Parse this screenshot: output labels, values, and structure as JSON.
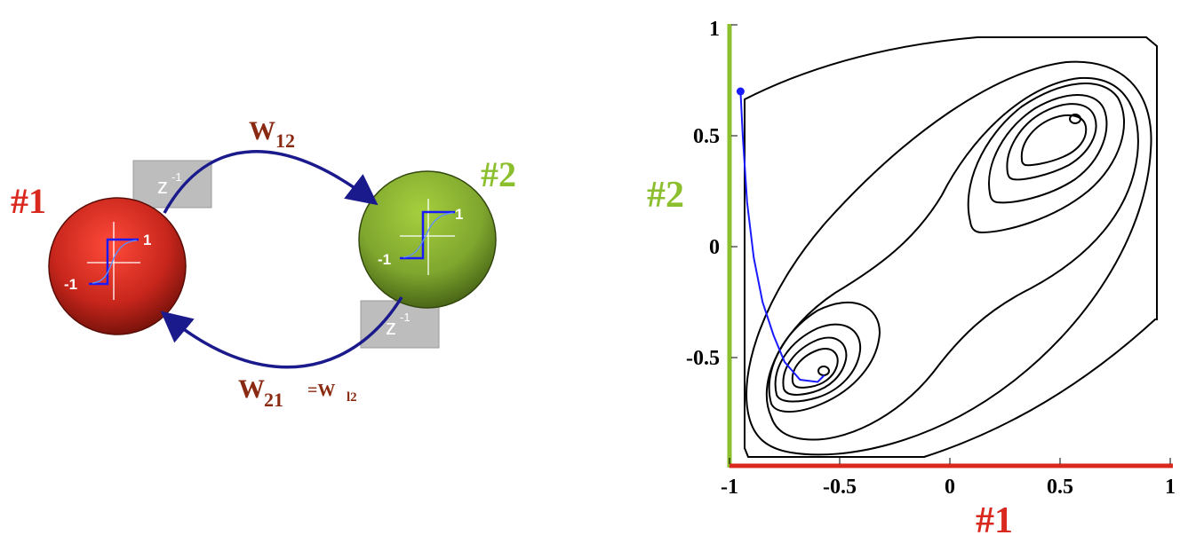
{
  "colors": {
    "neuron1": "#c8261c",
    "neuron2": "#7fa62e",
    "label1": "#d9281e",
    "label2": "#8cbf2e",
    "weight_text": "#8b2a12",
    "arrow": "#1a1a8c",
    "delay_box": "#bdbdbd",
    "trajectory": "#1a1aff",
    "contour": "#000000"
  },
  "diagram": {
    "neuron1_label": "#1",
    "neuron2_label": "#2",
    "delay_label": "z",
    "delay_exponent": "-1",
    "weight12_base": "W",
    "weight12_sub": "12",
    "weight21_base": "W",
    "weight21_sub": "21",
    "weight21_eq": "=W",
    "weight21_eq_sub": "l2",
    "activation_pos_label": "1",
    "activation_neg_label": "-1"
  },
  "plot": {
    "x_axis_label": "#1",
    "y_axis_label": "#2",
    "x_ticks": [
      "-1",
      "-0.5",
      "0",
      "0.5",
      "1"
    ],
    "y_ticks": [
      "1",
      "0.5",
      "0",
      "-0.5"
    ]
  },
  "chart_data": {
    "type": "contour",
    "x_range": [
      -1,
      1
    ],
    "y_range": [
      -1,
      1
    ],
    "x_axis_color": "#d9281e",
    "y_axis_color": "#8cbf2e",
    "minima": [
      [
        -0.57,
        -0.56
      ],
      [
        0.57,
        0.58
      ]
    ],
    "trajectory": [
      [
        -0.95,
        0.7
      ],
      [
        -0.94,
        0.5
      ],
      [
        -0.92,
        0.2
      ],
      [
        -0.89,
        -0.05
      ],
      [
        -0.85,
        -0.25
      ],
      [
        -0.8,
        -0.4
      ],
      [
        -0.75,
        -0.52
      ],
      [
        -0.68,
        -0.6
      ],
      [
        -0.6,
        -0.61
      ],
      [
        -0.57,
        -0.58
      ]
    ],
    "trajectory_start": [
      -0.95,
      0.7
    ]
  }
}
